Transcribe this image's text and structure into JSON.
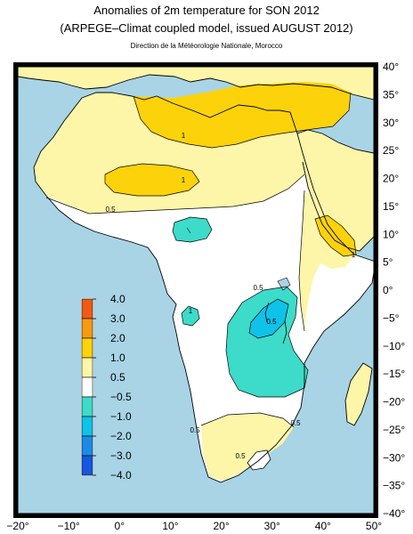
{
  "header": {
    "title": "Anomalies of 2m temperature for SON 2012",
    "subtitle": "(ARPEGE–Climat coupled model, issued AUGUST 2012)",
    "credit": "Direction de la Météorologie Nationale, Morocco"
  },
  "map": {
    "lon_range": [
      -20,
      50
    ],
    "lat_range": [
      -40,
      40
    ],
    "x_ticks": [
      "−20°",
      "−10°",
      "0°",
      "10°",
      "20°",
      "30°",
      "40°",
      "50°"
    ],
    "y_ticks": [
      "40°",
      "35°",
      "30°",
      "25°",
      "20°",
      "15°",
      "10°",
      "5°",
      "0°",
      "−5°",
      "−10°",
      "−15°",
      "−20°",
      "−25°",
      "−30°",
      "−35°",
      "−40°"
    ],
    "contour_labels": [
      "1",
      "1",
      "0.5",
      "1",
      "0.5",
      "0.5",
      "1",
      "0.5",
      "0.5",
      "0.5"
    ],
    "colors": {
      "ocean": "#a8d4e6",
      "warm_1": "#fdf6a8",
      "warm_2": "#fcd20a",
      "neutral": "#ffffff",
      "cool_1": "#3ddbc9",
      "cool_2": "#0ec2e8"
    }
  },
  "legend": {
    "labels": [
      "4.0",
      "3.0",
      "2.0",
      "1.0",
      "0.5",
      "−0.5",
      "−1.0",
      "−2.0",
      "−3.0",
      "−4.0"
    ],
    "colors": [
      "#f05a14",
      "#f79a12",
      "#fcd20a",
      "#fdf6a8",
      "#ffffff",
      "#3ddbc9",
      "#0ec2e8",
      "#1a8ce6",
      "#1559e0"
    ]
  }
}
